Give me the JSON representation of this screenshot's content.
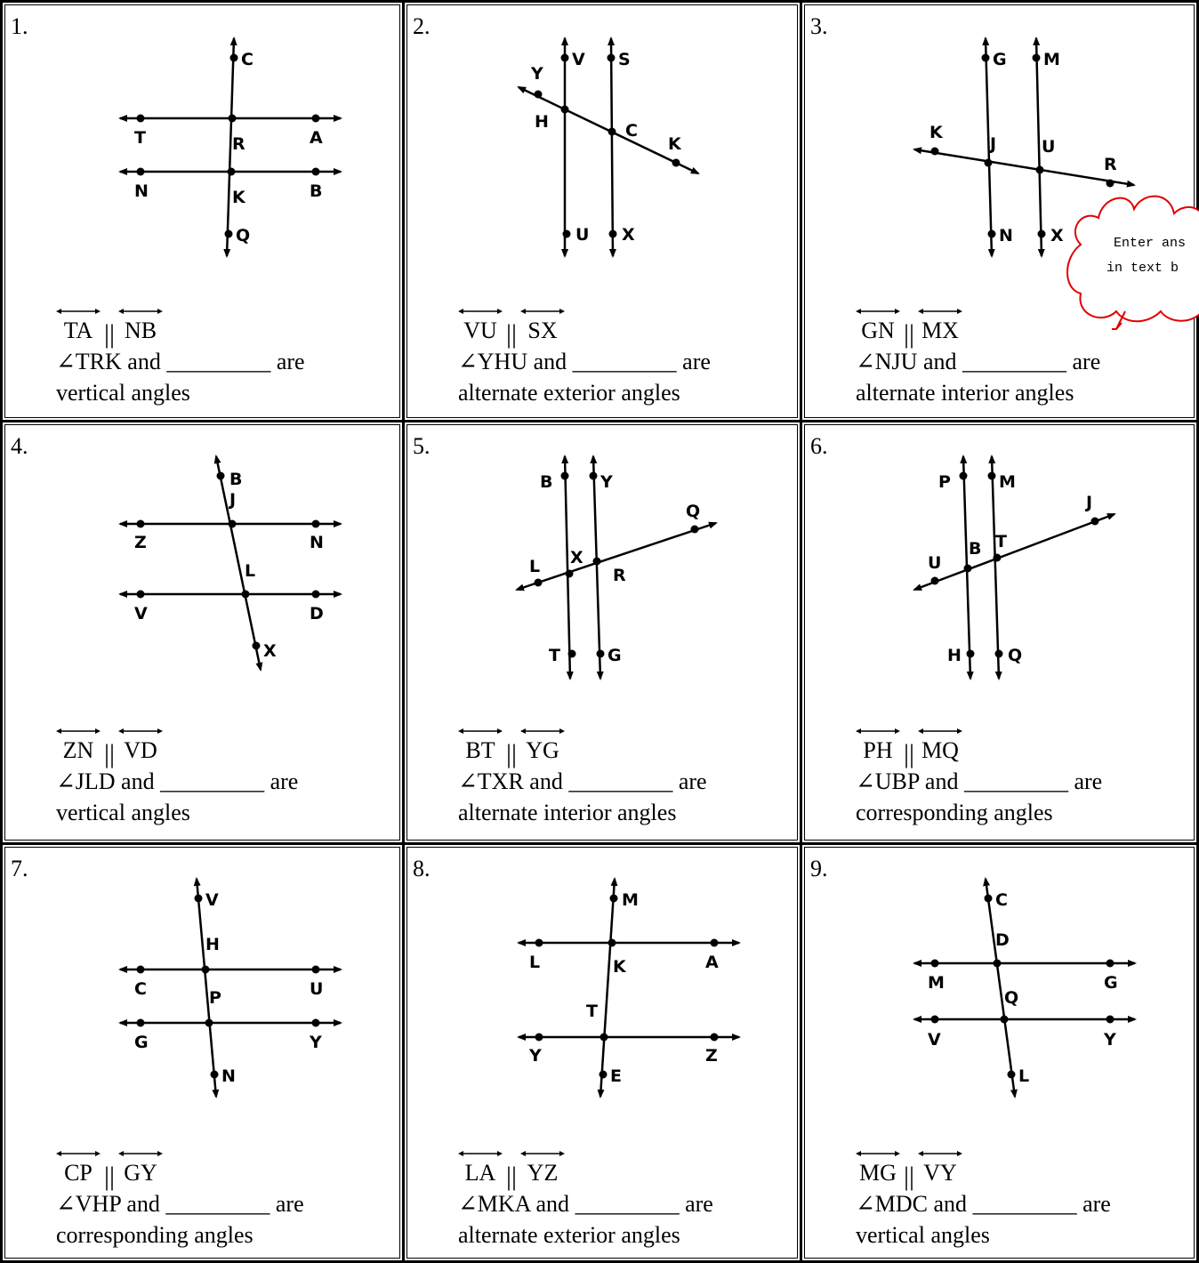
{
  "problems": [
    {
      "number": "1.",
      "line_a": "TA",
      "line_b": "NB",
      "angle": "∠TRK and",
      "blank": "_________",
      "are": "are",
      "relation": "vertical angles",
      "labels": [
        {
          "t": "C"
        },
        {
          "t": "T"
        },
        {
          "t": "R"
        },
        {
          "t": "A"
        },
        {
          "t": "N"
        },
        {
          "t": "K"
        },
        {
          "t": "B"
        },
        {
          "t": "Q"
        }
      ]
    },
    {
      "number": "2.",
      "line_a": "VU",
      "line_b": "SX",
      "angle": "∠YHU and",
      "blank": "_________",
      "are": "are",
      "relation": "alternate exterior angles",
      "labels": [
        {
          "t": "V"
        },
        {
          "t": "S"
        },
        {
          "t": "Y"
        },
        {
          "t": "H"
        },
        {
          "t": "C"
        },
        {
          "t": "K"
        },
        {
          "t": "U"
        },
        {
          "t": "X"
        }
      ]
    },
    {
      "number": "3.",
      "line_a": "GN",
      "line_b": "MX",
      "angle": "∠NJU and",
      "blank": "_________",
      "are": "are",
      "relation": "alternate interior angles",
      "labels": [
        {
          "t": "G"
        },
        {
          "t": "M"
        },
        {
          "t": "K"
        },
        {
          "t": "J"
        },
        {
          "t": "U"
        },
        {
          "t": "R"
        },
        {
          "t": "N"
        },
        {
          "t": "X"
        }
      ]
    },
    {
      "number": "4.",
      "line_a": "ZN",
      "line_b": "VD",
      "angle": "∠JLD and",
      "blank": "_________",
      "are": "are",
      "relation": "vertical angles",
      "labels": [
        {
          "t": "B"
        },
        {
          "t": "J"
        },
        {
          "t": "Z"
        },
        {
          "t": "N"
        },
        {
          "t": "L"
        },
        {
          "t": "V"
        },
        {
          "t": "D"
        },
        {
          "t": "X"
        }
      ]
    },
    {
      "number": "5.",
      "line_a": "BT",
      "line_b": "YG",
      "angle": "∠TXR and",
      "blank": "_________",
      "are": "are",
      "relation": "alternate interior angles",
      "labels": [
        {
          "t": "B"
        },
        {
          "t": "Y"
        },
        {
          "t": "Q"
        },
        {
          "t": "L"
        },
        {
          "t": "X"
        },
        {
          "t": "R"
        },
        {
          "t": "T"
        },
        {
          "t": "G"
        }
      ]
    },
    {
      "number": "6.",
      "line_a": "PH",
      "line_b": "MQ",
      "angle": "∠UBP and",
      "blank": "_________",
      "are": "are",
      "relation": "corresponding angles",
      "labels": [
        {
          "t": "P"
        },
        {
          "t": "M"
        },
        {
          "t": "J"
        },
        {
          "t": "U"
        },
        {
          "t": "B"
        },
        {
          "t": "T"
        },
        {
          "t": "H"
        },
        {
          "t": "Q"
        }
      ]
    },
    {
      "number": "7.",
      "line_a": "CP",
      "line_b": "GY",
      "angle": "∠VHP and",
      "blank": "_________",
      "are": "are",
      "relation": "corresponding angles",
      "labels": [
        {
          "t": "V"
        },
        {
          "t": "H"
        },
        {
          "t": "C"
        },
        {
          "t": "U"
        },
        {
          "t": "P"
        },
        {
          "t": "G"
        },
        {
          "t": "Y"
        },
        {
          "t": "N"
        }
      ]
    },
    {
      "number": "8.",
      "line_a": "LA",
      "line_b": "YZ",
      "angle": "∠MKA and",
      "blank": "_________",
      "are": "are",
      "relation": "alternate exterior angles",
      "labels": [
        {
          "t": "M"
        },
        {
          "t": "L"
        },
        {
          "t": "K"
        },
        {
          "t": "A"
        },
        {
          "t": "T"
        },
        {
          "t": "Y"
        },
        {
          "t": "Z"
        },
        {
          "t": "E"
        }
      ]
    },
    {
      "number": "9.",
      "line_a": "MG",
      "line_b": "VY",
      "angle": "∠MDC and",
      "blank": "_________",
      "are": "are",
      "relation": "vertical angles",
      "labels": [
        {
          "t": "C"
        },
        {
          "t": "D"
        },
        {
          "t": "M"
        },
        {
          "t": "G"
        },
        {
          "t": "Q"
        },
        {
          "t": "V"
        },
        {
          "t": "Y"
        },
        {
          "t": "L"
        }
      ]
    }
  ],
  "cloud": {
    "line1": "Enter ans",
    "line2": "in text b",
    "color": "#e00000"
  }
}
